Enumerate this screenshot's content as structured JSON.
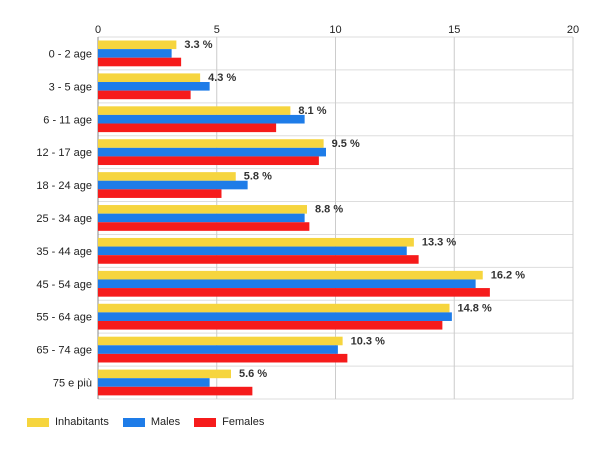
{
  "chart_data": {
    "type": "bar",
    "orientation": "horizontal",
    "categories": [
      "0 - 2 age",
      "3 - 5 age",
      "6 - 11 age",
      "12 - 17 age",
      "18 - 24 age",
      "25 - 34 age",
      "35 - 44 age",
      "45 - 54 age",
      "55 - 64 age",
      "65 - 74 age",
      "75 e più"
    ],
    "series": [
      {
        "name": "Inhabitants",
        "color": "#f6d53e",
        "values": [
          3.3,
          4.3,
          8.1,
          9.5,
          5.8,
          8.8,
          13.3,
          16.2,
          14.8,
          10.3,
          5.6
        ]
      },
      {
        "name": "Males",
        "color": "#1e7ce8",
        "values": [
          3.1,
          4.7,
          8.7,
          9.6,
          6.3,
          8.7,
          13.0,
          15.9,
          14.9,
          10.1,
          4.7
        ]
      },
      {
        "name": "Females",
        "color": "#f61b1b",
        "values": [
          3.5,
          3.9,
          7.5,
          9.3,
          5.2,
          8.9,
          13.5,
          16.5,
          14.5,
          10.5,
          6.5
        ]
      }
    ],
    "data_labels": [
      "3.3 %",
      "4.3 %",
      "8.1 %",
      "9.5 %",
      "5.8 %",
      "8.8 %",
      "13.3 %",
      "16.2 %",
      "14.8 %",
      "10.3 %",
      "5.6 %"
    ],
    "xlim": [
      0,
      20
    ],
    "x_ticks": [
      0,
      5,
      10,
      15,
      20
    ],
    "x_axis_position": "top",
    "grid": true,
    "legend_position": "bottom-left"
  }
}
